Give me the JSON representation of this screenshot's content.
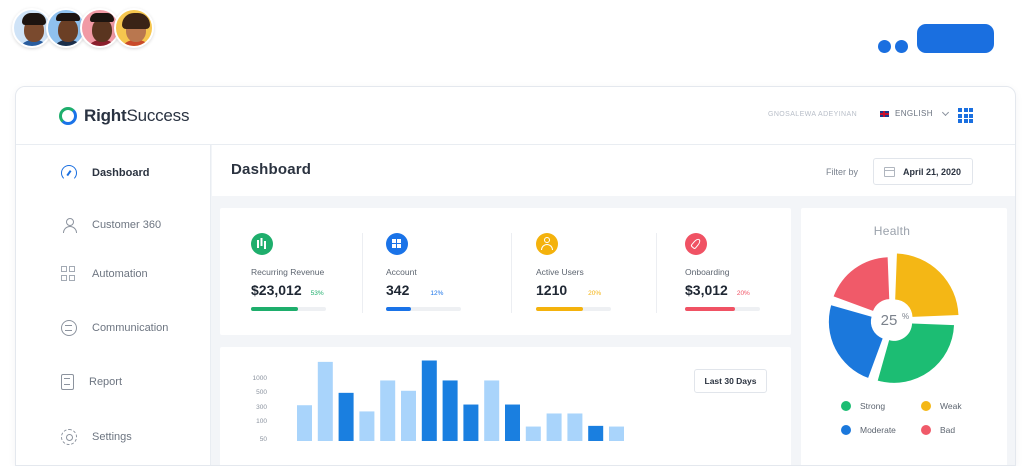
{
  "brand": {
    "name_bold": "Right",
    "name_rest": "Success"
  },
  "header": {
    "user_name": "GNOSALEWA ADEYINAN",
    "language": "ENGLISH"
  },
  "sidebar": {
    "items": [
      {
        "label": "Dashboard",
        "icon": "gauge-icon",
        "active": true
      },
      {
        "label": "Customer 360",
        "icon": "user-icon",
        "active": false
      },
      {
        "label": "Automation",
        "icon": "grid-icon",
        "active": false
      },
      {
        "label": "Communication",
        "icon": "chat-icon",
        "active": false
      },
      {
        "label": "Report",
        "icon": "report-icon",
        "active": false
      },
      {
        "label": "Settings",
        "icon": "gear-icon",
        "active": false
      }
    ]
  },
  "main": {
    "title": "Dashboard",
    "filter_label": "Filter by",
    "date": "April 21, 2020"
  },
  "kpis": [
    {
      "name": "Recurring Revenue",
      "value": "$23,012",
      "pct": "53%",
      "progress": 0.63,
      "color": "#1eae6c",
      "icon": "bar-chart-icon"
    },
    {
      "name": "Account",
      "value": "342",
      "pct": "12%",
      "progress": 0.33,
      "color": "#1a73e8",
      "icon": "squares-icon"
    },
    {
      "name": "Active Users",
      "value": "1210",
      "pct": "20%",
      "progress": 0.63,
      "color": "#f4b20c",
      "icon": "person-icon"
    },
    {
      "name": "Onboarding",
      "value": "$3,012",
      "pct": "20%",
      "progress": 0.67,
      "color": "#f05264",
      "icon": "rocket-icon"
    }
  ],
  "chart_data": [
    {
      "type": "bar",
      "title": "",
      "range_label": "Last 30 Days",
      "y_ticks": [
        "1000",
        "500",
        "300",
        "100",
        "50"
      ],
      "values": [
        520,
        1150,
        700,
        430,
        880,
        730,
        1170,
        880,
        530,
        880,
        530,
        210,
        400,
        400,
        220,
        210
      ],
      "highlight": [
        false,
        false,
        true,
        false,
        false,
        false,
        true,
        true,
        true,
        false,
        true,
        false,
        false,
        false,
        true,
        false
      ],
      "ylim": [
        0,
        1250
      ],
      "colors": {
        "light": "#a9d4fb",
        "dark": "#1a7fe0"
      }
    },
    {
      "type": "pie",
      "title": "Health",
      "center_label": "25",
      "center_unit": "%",
      "slices": [
        {
          "name": "Weak",
          "value": 25,
          "color": "#f4b715"
        },
        {
          "name": "Strong",
          "value": 30,
          "color": "#1cbd73"
        },
        {
          "name": "Moderate",
          "value": 25,
          "color": "#1b78dc"
        },
        {
          "name": "Bad",
          "value": 20,
          "color": "#f05a69"
        }
      ],
      "legend": [
        {
          "name": "Strong",
          "color": "#1cbd73"
        },
        {
          "name": "Weak",
          "color": "#f4b715"
        },
        {
          "name": "Moderate",
          "color": "#1b78dc"
        },
        {
          "name": "Bad",
          "color": "#f05a69"
        }
      ]
    }
  ]
}
